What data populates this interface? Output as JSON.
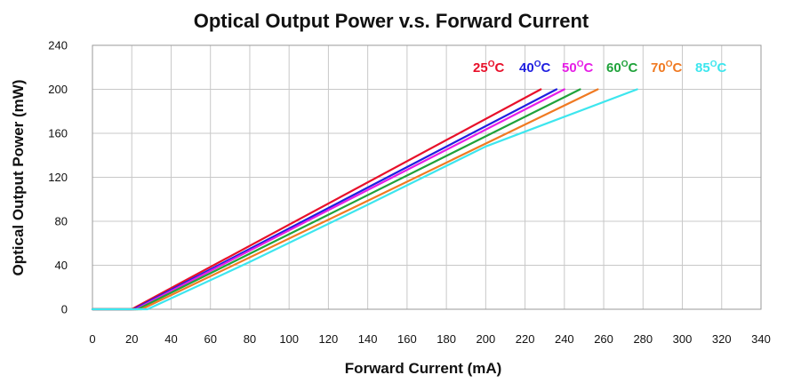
{
  "chart_data": {
    "type": "line",
    "title": "Optical Output Power v.s. Forward Current",
    "xlabel": "Forward Current (mA)",
    "ylabel": "Optical Output Power (mW)",
    "xlim": [
      0,
      340
    ],
    "ylim": [
      0,
      240
    ],
    "x_ticks": [
      0,
      20,
      40,
      60,
      80,
      100,
      120,
      140,
      160,
      180,
      200,
      220,
      240,
      260,
      280,
      300,
      320,
      340
    ],
    "y_ticks": [
      0,
      40,
      80,
      120,
      160,
      200,
      240
    ],
    "grid": true,
    "legend_position": "top-right",
    "series": [
      {
        "name": "25°C",
        "label_temp": "25",
        "label_unit": "C",
        "color": "#e8102a",
        "x": [
          0,
          20,
          228
        ],
        "y": [
          0,
          0,
          200
        ]
      },
      {
        "name": "40°C",
        "label_temp": "40",
        "label_unit": "C",
        "color": "#1f1fe0",
        "x": [
          0,
          21,
          236
        ],
        "y": [
          0,
          0,
          200
        ]
      },
      {
        "name": "50°C",
        "label_temp": "50",
        "label_unit": "C",
        "color": "#e61ee6",
        "x": [
          0,
          22,
          110,
          240
        ],
        "y": [
          0,
          0,
          81,
          200
        ]
      },
      {
        "name": "60°C",
        "label_temp": "60",
        "label_unit": "C",
        "color": "#1fa23a",
        "x": [
          0,
          23,
          120,
          248
        ],
        "y": [
          0,
          0,
          86,
          200
        ]
      },
      {
        "name": "70°C",
        "label_temp": "70",
        "label_unit": "C",
        "color": "#f07a22",
        "x": [
          0,
          25,
          130,
          257
        ],
        "y": [
          0,
          0,
          90,
          200
        ]
      },
      {
        "name": "85°C",
        "label_temp": "85",
        "label_unit": "C",
        "color": "#3de6ee",
        "x": [
          0,
          28,
          80,
          140,
          200,
          277
        ],
        "y": [
          0,
          0,
          43,
          95,
          148,
          200
        ]
      }
    ]
  }
}
